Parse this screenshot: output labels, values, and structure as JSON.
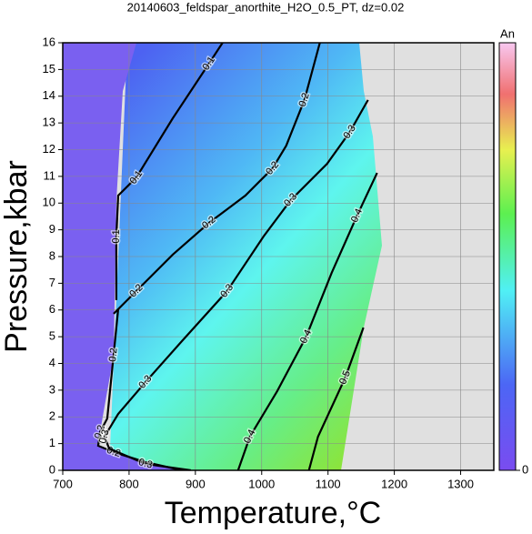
{
  "chart_data": {
    "type": "contour",
    "title": "20140603_feldspar_anorthite_H2O_0.5_PT, dz=0.02",
    "x_label": "Temperature,°C",
    "y_label": "Pressure,kbar",
    "xlim": [
      700,
      1350
    ],
    "ylim": [
      0,
      16
    ],
    "xticks": [
      700,
      800,
      900,
      1000,
      1100,
      1200,
      1300
    ],
    "yticks": [
      0,
      1,
      2,
      3,
      4,
      5,
      6,
      7,
      8,
      9,
      10,
      11,
      12,
      13,
      14,
      15,
      16
    ],
    "grid": true,
    "colorbar": {
      "label": "An",
      "clim": [
        0,
        0.7
      ],
      "ticks": [
        0
      ]
    },
    "contours": [
      {
        "level": 0.1,
        "x": [
          941,
          920.5,
          865.8,
          811,
          783.6,
          780.8,
          780.8
        ],
        "y": [
          16,
          15.22,
          13.17,
          10.96,
          10.28,
          8.75,
          6.37
        ]
      },
      {
        "level": 0.2,
        "x": [
          1087.7,
          1064.4,
          1037,
          1016.4,
          975.3,
          920.5,
          865.8,
          811,
          776.7
        ],
        "y": [
          16,
          13.86,
          12.15,
          11.3,
          10.28,
          9.26,
          8.07,
          6.71,
          5.86
        ]
      },
      {
        "level": 0.2,
        "x": [
          783.6,
          776.7,
          767.1,
          756.2,
          753.4,
          776.7,
          824.7,
          879.5
        ],
        "y": [
          6.03,
          4.32,
          1.94,
          1.43,
          0.92,
          0.68,
          0.31,
          0
        ]
      },
      {
        "level": 0.3,
        "x": [
          1160.3,
          1132.9,
          1098.6,
          1043.8,
          1002.7,
          947.9,
          879.5,
          824.7,
          783.6,
          763,
          769.9,
          824.7,
          893.2
        ],
        "y": [
          13.86,
          12.66,
          11.47,
          10.11,
          8.75,
          6.71,
          4.83,
          3.3,
          2.11,
          1.26,
          0.82,
          0.24,
          0
        ]
      },
      {
        "level": 0.4,
        "x": [
          1174,
          1143.8,
          1105.5,
          1067.1,
          1023.3,
          982.2,
          964.4
        ],
        "y": [
          11.13,
          9.53,
          7.39,
          5.0,
          2.96,
          1.26,
          0
        ]
      },
      {
        "level": 0.5,
        "x": [
          1153.4,
          1126,
          1084.9,
          1071.2
        ],
        "y": [
          5.34,
          3.47,
          1.26,
          0
        ]
      }
    ]
  }
}
